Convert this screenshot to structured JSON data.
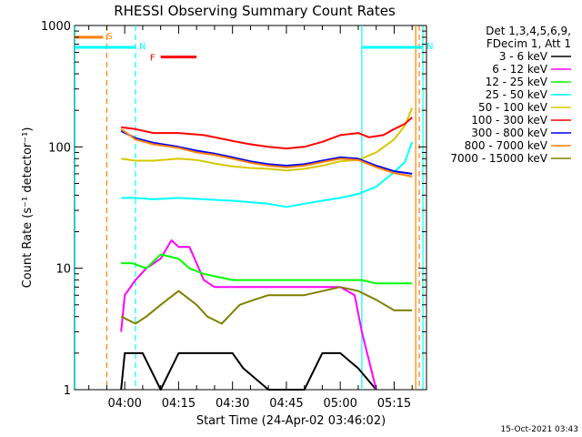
{
  "chart_data": {
    "type": "line",
    "title": "RHESSI Observing Summary Count Rates",
    "xlabel": "Start Time (24-Apr-02 03:46:02)",
    "ylabel": "Count Rate (s⁻¹ detector⁻¹)",
    "yscale": "log",
    "ylim": [
      1,
      1000
    ],
    "xlim": [
      "03:46:02",
      "05:24:00"
    ],
    "yticks": [
      1,
      10,
      100,
      1000
    ],
    "ytick_labels": [
      "1",
      "10",
      "100",
      "1000"
    ],
    "xticks": [
      "04:00",
      "04:15",
      "04:30",
      "04:45",
      "05:00",
      "05:15"
    ],
    "grid": false,
    "legend_position": "right",
    "legend_header": [
      "Det 1,3,4,5,6,9,",
      "FDecim 1, Att 1"
    ],
    "timestamp": "15-Oct-2021 03:43",
    "series": [
      {
        "name": "3 - 6 keV",
        "color": "#000000",
        "points": [
          [
            "03:59",
            1
          ],
          [
            "04:00",
            2
          ],
          [
            "04:05",
            2
          ],
          [
            "04:10",
            1
          ],
          [
            "04:15",
            2
          ],
          [
            "04:20",
            2
          ],
          [
            "04:25",
            2
          ],
          [
            "04:30",
            2
          ],
          [
            "04:33",
            1.5
          ],
          [
            "04:40",
            1
          ],
          [
            "04:50",
            1
          ],
          [
            "04:55",
            2
          ],
          [
            "05:00",
            2
          ],
          [
            "05:05",
            1.5
          ],
          [
            "05:10",
            1
          ]
        ]
      },
      {
        "name": "6 - 12 keV",
        "color": "#ff00ff",
        "points": [
          [
            "03:59",
            3
          ],
          [
            "04:00",
            6
          ],
          [
            "04:03",
            8
          ],
          [
            "04:06",
            10
          ],
          [
            "04:10",
            12
          ],
          [
            "04:13",
            17
          ],
          [
            "04:15",
            15
          ],
          [
            "04:18",
            15
          ],
          [
            "04:20",
            11
          ],
          [
            "04:22",
            8
          ],
          [
            "04:25",
            7
          ],
          [
            "04:30",
            7
          ],
          [
            "04:40",
            7
          ],
          [
            "04:50",
            7
          ],
          [
            "05:00",
            7
          ],
          [
            "05:04",
            6
          ],
          [
            "05:06",
            3
          ],
          [
            "05:10",
            1
          ]
        ]
      },
      {
        "name": "12 - 25 keV",
        "color": "#00ff00",
        "points": [
          [
            "03:59",
            11
          ],
          [
            "04:02",
            11
          ],
          [
            "04:06",
            10
          ],
          [
            "04:10",
            13
          ],
          [
            "04:15",
            12
          ],
          [
            "04:18",
            10
          ],
          [
            "04:22",
            9
          ],
          [
            "04:30",
            8
          ],
          [
            "04:40",
            8
          ],
          [
            "04:50",
            8
          ],
          [
            "05:00",
            8
          ],
          [
            "05:06",
            8
          ],
          [
            "05:10",
            7.5
          ],
          [
            "05:15",
            7.5
          ],
          [
            "05:20",
            7.5
          ]
        ]
      },
      {
        "name": "25 - 50 keV",
        "color": "#00ffff",
        "points": [
          [
            "03:59",
            38
          ],
          [
            "04:03",
            38
          ],
          [
            "04:08",
            37
          ],
          [
            "04:15",
            38
          ],
          [
            "04:22",
            37
          ],
          [
            "04:30",
            36
          ],
          [
            "04:35",
            35
          ],
          [
            "04:40",
            34
          ],
          [
            "04:45",
            32
          ],
          [
            "04:50",
            34
          ],
          [
            "04:55",
            36
          ],
          [
            "05:00",
            38
          ],
          [
            "05:05",
            41
          ],
          [
            "05:10",
            47
          ],
          [
            "05:15",
            62
          ],
          [
            "05:18",
            75
          ],
          [
            "05:20",
            110
          ]
        ]
      },
      {
        "name": "50 - 100 keV",
        "color": "#d7c800",
        "points": [
          [
            "03:59",
            80
          ],
          [
            "04:03",
            77
          ],
          [
            "04:08",
            77
          ],
          [
            "04:15",
            80
          ],
          [
            "04:20",
            78
          ],
          [
            "04:25",
            73
          ],
          [
            "04:30",
            69
          ],
          [
            "04:35",
            67
          ],
          [
            "04:40",
            66
          ],
          [
            "04:45",
            64
          ],
          [
            "04:50",
            66
          ],
          [
            "04:55",
            70
          ],
          [
            "05:00",
            76
          ],
          [
            "05:05",
            78
          ],
          [
            "05:10",
            90
          ],
          [
            "05:15",
            115
          ],
          [
            "05:18",
            150
          ],
          [
            "05:20",
            210
          ]
        ]
      },
      {
        "name": "100 - 300 keV",
        "color": "#ff0000",
        "points": [
          [
            "03:59",
            145
          ],
          [
            "04:03",
            140
          ],
          [
            "04:08",
            130
          ],
          [
            "04:15",
            130
          ],
          [
            "04:22",
            125
          ],
          [
            "04:30",
            112
          ],
          [
            "04:35",
            105
          ],
          [
            "04:40",
            100
          ],
          [
            "04:45",
            97
          ],
          [
            "04:50",
            100
          ],
          [
            "04:55",
            110
          ],
          [
            "05:00",
            125
          ],
          [
            "05:05",
            130
          ],
          [
            "05:08",
            120
          ],
          [
            "05:12",
            125
          ],
          [
            "05:15",
            140
          ],
          [
            "05:18",
            155
          ],
          [
            "05:20",
            175
          ]
        ]
      },
      {
        "name": "300 - 800 keV",
        "color": "#0000ff",
        "points": [
          [
            "03:59",
            135
          ],
          [
            "04:03",
            118
          ],
          [
            "04:08",
            108
          ],
          [
            "04:15",
            100
          ],
          [
            "04:20",
            93
          ],
          [
            "04:25",
            88
          ],
          [
            "04:30",
            82
          ],
          [
            "04:35",
            76
          ],
          [
            "04:40",
            72
          ],
          [
            "04:45",
            70
          ],
          [
            "04:50",
            72
          ],
          [
            "04:55",
            77
          ],
          [
            "05:00",
            82
          ],
          [
            "05:05",
            80
          ],
          [
            "05:10",
            70
          ],
          [
            "05:15",
            63
          ],
          [
            "05:20",
            60
          ]
        ]
      },
      {
        "name": "800 - 7000 keV",
        "color": "#ff8000",
        "points": [
          [
            "03:59",
            140
          ],
          [
            "04:03",
            115
          ],
          [
            "04:08",
            105
          ],
          [
            "04:15",
            98
          ],
          [
            "04:20",
            90
          ],
          [
            "04:25",
            86
          ],
          [
            "04:30",
            80
          ],
          [
            "04:35",
            74
          ],
          [
            "04:40",
            70
          ],
          [
            "04:45",
            68
          ],
          [
            "04:50",
            70
          ],
          [
            "04:55",
            75
          ],
          [
            "05:00",
            80
          ],
          [
            "05:05",
            78
          ],
          [
            "05:10",
            68
          ],
          [
            "05:15",
            61
          ],
          [
            "05:20",
            57
          ]
        ]
      },
      {
        "name": "7000 - 15000 keV",
        "color": "#808000",
        "points": [
          [
            "03:59",
            4
          ],
          [
            "04:03",
            3.5
          ],
          [
            "04:06",
            4
          ],
          [
            "04:10",
            5
          ],
          [
            "04:15",
            6.5
          ],
          [
            "04:20",
            5
          ],
          [
            "04:23",
            4
          ],
          [
            "04:27",
            3.5
          ],
          [
            "04:32",
            5
          ],
          [
            "04:36",
            5.5
          ],
          [
            "04:40",
            6
          ],
          [
            "04:50",
            6
          ],
          [
            "05:00",
            7
          ],
          [
            "05:05",
            6.5
          ],
          [
            "05:10",
            5.5
          ],
          [
            "05:15",
            4.5
          ],
          [
            "05:20",
            4.5
          ]
        ]
      }
    ],
    "annotations": [
      {
        "label": "S",
        "color": "#ff8000",
        "bar": [
          "03:46:02",
          "03:54"
        ],
        "level": 800
      },
      {
        "label": "N",
        "color": "#00ffff",
        "bar": [
          "03:46:02",
          "04:03"
        ],
        "level": 660
      },
      {
        "label": "N",
        "color": "#00ffff",
        "bar": [
          "05:06",
          "05:23"
        ],
        "level": 660
      },
      {
        "label": "F",
        "color": "#ff0000",
        "bar": [
          "04:10",
          "04:20"
        ],
        "level": 550
      }
    ],
    "vertical_markers": [
      {
        "time": "03:46:10",
        "color": "#00ffff",
        "style": "solid"
      },
      {
        "time": "03:55",
        "color": "#ff8000",
        "style": "dashed"
      },
      {
        "time": "04:03",
        "color": "#00ffff",
        "style": "dashed"
      },
      {
        "time": "05:06",
        "color": "#00ffff",
        "style": "solid"
      },
      {
        "time": "05:21",
        "color": "#ff8000",
        "style": "solid"
      },
      {
        "time": "05:22",
        "color": "#ff8000",
        "style": "dashed"
      },
      {
        "time": "05:23",
        "color": "#00ffff",
        "style": "solid"
      }
    ]
  }
}
